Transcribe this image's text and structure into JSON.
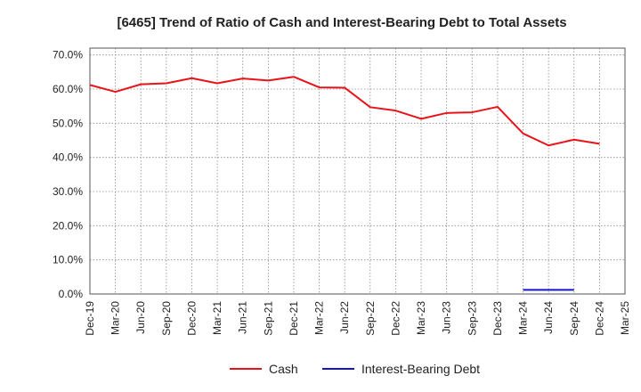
{
  "chart_data": {
    "type": "line",
    "title": "[6465]  Trend of Ratio of Cash and Interest-Bearing Debt to Total Assets",
    "xlabel": "",
    "ylabel": "",
    "ylim": [
      0,
      72
    ],
    "yticks": [
      0,
      10,
      20,
      30,
      40,
      50,
      60,
      70
    ],
    "ytick_labels": [
      "0.0%",
      "10.0%",
      "20.0%",
      "30.0%",
      "40.0%",
      "50.0%",
      "60.0%",
      "70.0%"
    ],
    "categories": [
      "Dec-19",
      "Mar-20",
      "Jun-20",
      "Sep-20",
      "Dec-20",
      "Mar-21",
      "Jun-21",
      "Sep-21",
      "Dec-21",
      "Mar-22",
      "Jun-22",
      "Sep-22",
      "Dec-22",
      "Mar-23",
      "Jun-23",
      "Sep-23",
      "Dec-23",
      "Mar-24",
      "Jun-24",
      "Sep-24",
      "Dec-24",
      "Mar-25"
    ],
    "grid": true,
    "legend_position": "bottom",
    "series": [
      {
        "name": "Cash",
        "color": "#e8141a",
        "values": [
          61.2,
          59.2,
          61.4,
          61.7,
          63.2,
          61.7,
          63.1,
          62.5,
          63.6,
          60.5,
          60.4,
          54.7,
          53.7,
          51.3,
          53.0,
          53.2,
          54.8,
          47.0,
          43.5,
          45.2,
          44.0,
          null
        ]
      },
      {
        "name": "Interest-Bearing Debt",
        "color": "#1515cc",
        "values": [
          null,
          null,
          null,
          null,
          null,
          null,
          null,
          null,
          null,
          null,
          null,
          null,
          null,
          null,
          null,
          null,
          null,
          1.2,
          1.2,
          1.2,
          null,
          null
        ]
      }
    ]
  }
}
